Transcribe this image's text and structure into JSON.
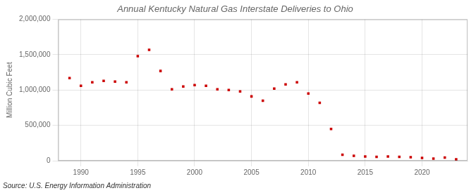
{
  "chart_data": {
    "type": "scatter",
    "title": "Annual Kentucky Natural Gas Interstate Deliveries to Ohio",
    "ylabel": "Million Cubic Feet",
    "source": "Source: U.S. Energy Information Administration",
    "x": [
      1989,
      1990,
      1991,
      1992,
      1993,
      1994,
      1995,
      1996,
      1997,
      1998,
      1999,
      2000,
      2001,
      2002,
      2003,
      2004,
      2005,
      2006,
      2007,
      2008,
      2009,
      2010,
      2011,
      2012,
      2013,
      2014,
      2015,
      2016,
      2017,
      2018,
      2019,
      2020,
      2021,
      2022,
      2023
    ],
    "values": [
      1170000,
      1060000,
      1110000,
      1130000,
      1120000,
      1110000,
      1480000,
      1570000,
      1270000,
      1010000,
      1050000,
      1070000,
      1060000,
      1010000,
      1000000,
      980000,
      910000,
      850000,
      1020000,
      1080000,
      1110000,
      950000,
      820000,
      450000,
      85000,
      70000,
      60000,
      55000,
      60000,
      55000,
      50000,
      40000,
      30000,
      45000,
      20000
    ],
    "color": "#cc0000",
    "marker": "square",
    "xlim": [
      1988,
      2024
    ],
    "xticks": [
      1990,
      1995,
      2000,
      2005,
      2010,
      2015,
      2020
    ],
    "ylim": [
      0,
      2000000
    ],
    "yticks": [
      0,
      {
        "value": 500000,
        "label": "500,000"
      },
      {
        "value": 1000000,
        "label": "1,000,000"
      },
      {
        "value": 1500000,
        "label": "1,500,000"
      },
      {
        "value": 2000000,
        "label": "2,000,000"
      }
    ],
    "grid": true
  }
}
